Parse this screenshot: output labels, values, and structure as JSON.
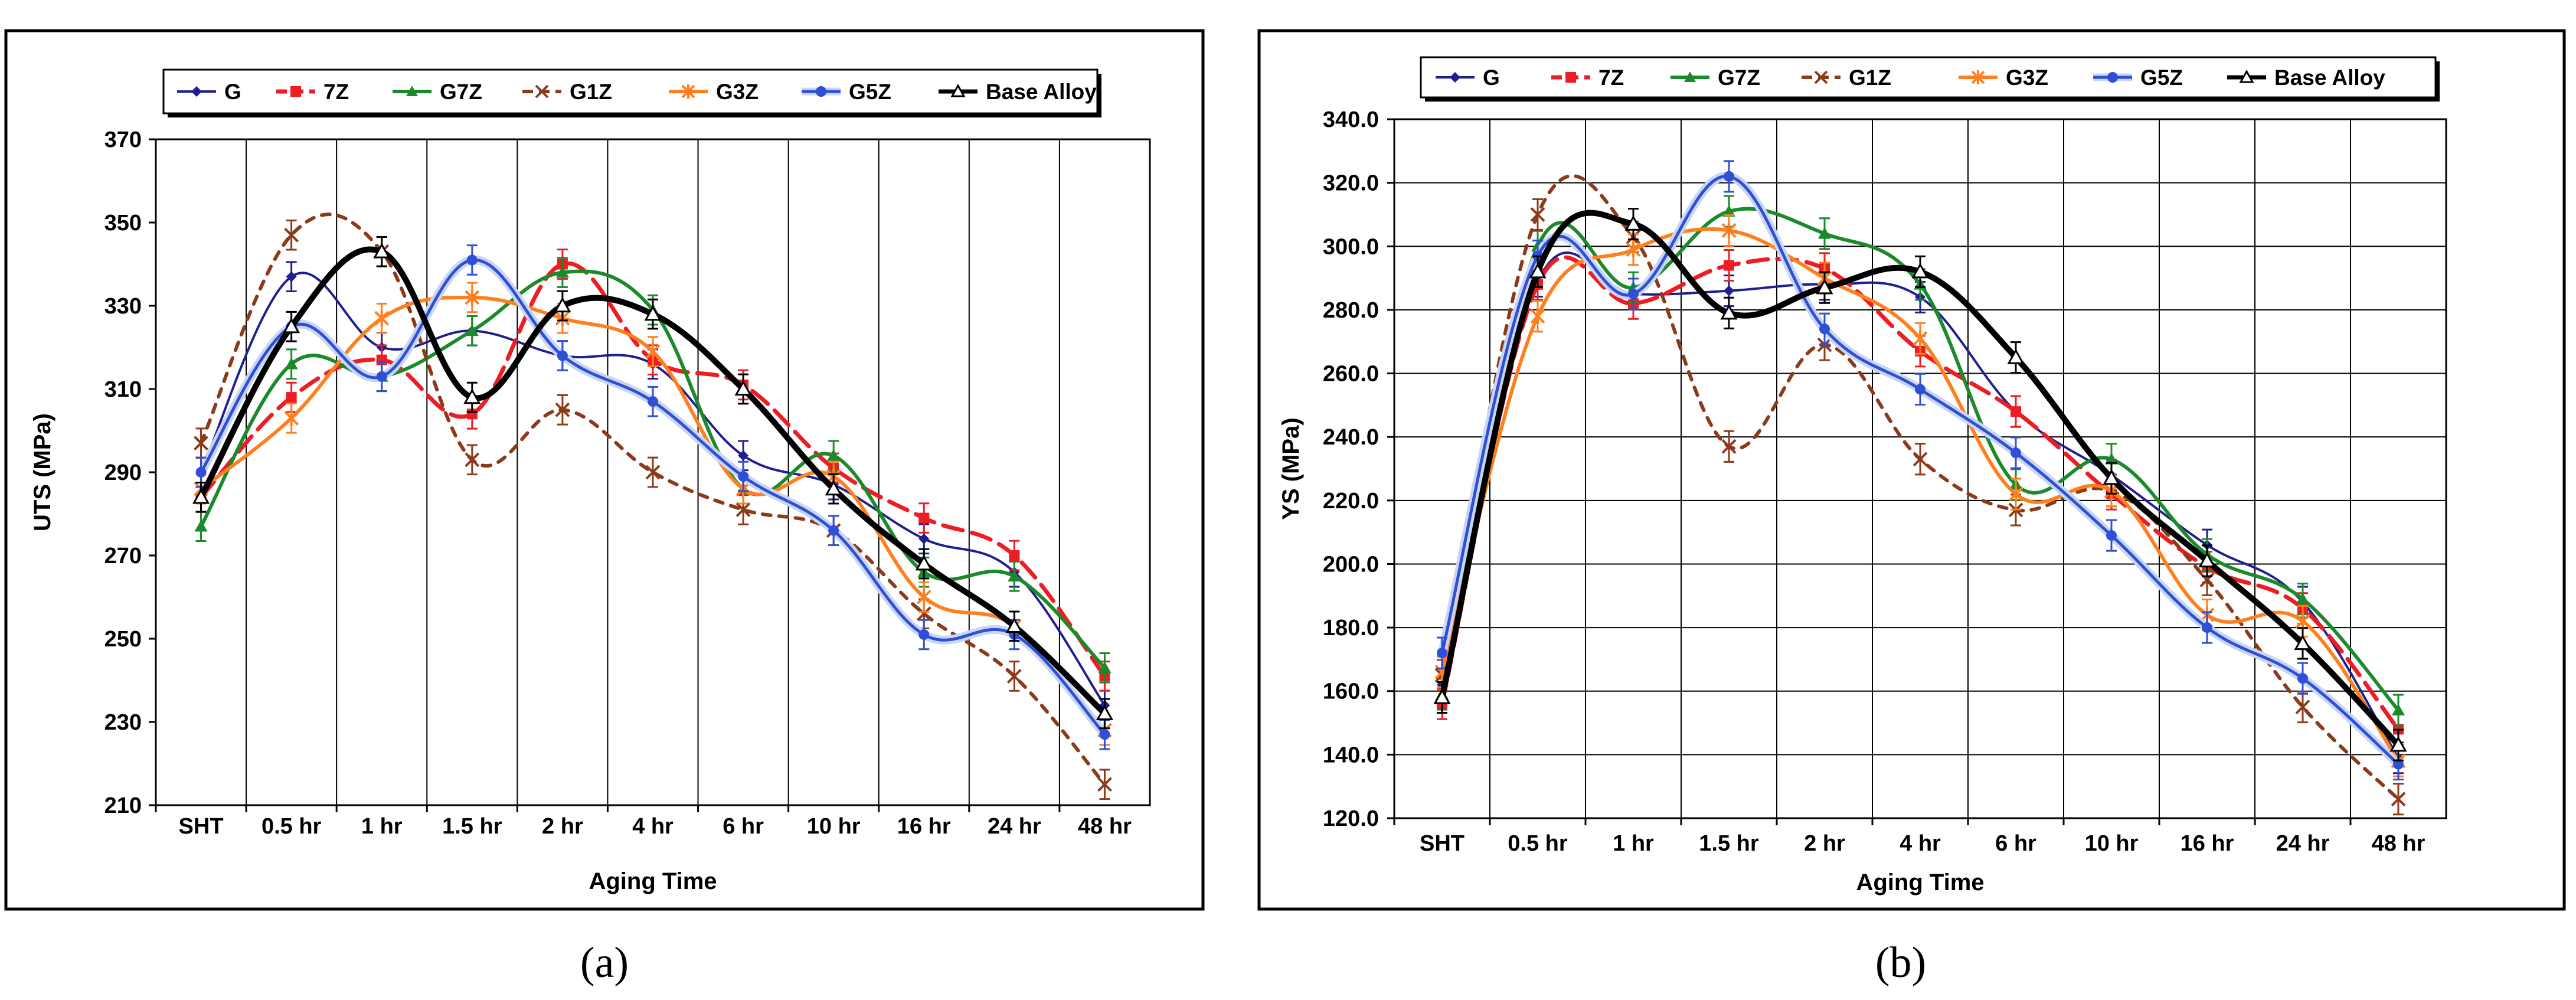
{
  "figure": {
    "panel_labels": [
      "(a)",
      "(b)"
    ],
    "colors": {
      "G": "#1f1f8f",
      "7Z": "#ee1c24",
      "G7Z": "#1b8a2a",
      "G1Z": "#8b3a1a",
      "G3Z": "#ff7f1e",
      "G5Z": "#2e4fd6",
      "Base Alloy": "#000000",
      "G5Z_band": "#c9d6f2"
    }
  },
  "chart_data": [
    {
      "type": "line",
      "title": "",
      "xlabel": "Aging Time",
      "ylabel": "UTS (MPa)",
      "categories": [
        "SHT",
        "0.5 hr",
        "1 hr",
        "1.5 hr",
        "2 hr",
        "4 hr",
        "6 hr",
        "10 hr",
        "16 hr",
        "24 hr",
        "48 hr"
      ],
      "ylim": [
        210,
        370
      ],
      "yticks": [
        "210",
        "230",
        "250",
        "270",
        "290",
        "310",
        "330",
        "350",
        "370"
      ],
      "grid": "vertical",
      "legend": "top",
      "legend_labels": [
        "G",
        "7Z",
        "G7Z",
        "G1Z",
        "G3Z",
        "G5Z",
        "Base Alloy"
      ],
      "series": [
        {
          "name": "G",
          "values": [
            290,
            337,
            320,
            324,
            318,
            316,
            294,
            287,
            274,
            266,
            234
          ]
        },
        {
          "name": "7Z",
          "values": [
            284,
            308,
            317,
            304,
            340,
            317,
            311,
            291,
            279,
            270,
            241
          ]
        },
        {
          "name": "G7Z",
          "values": [
            277,
            316,
            313,
            324,
            338,
            329,
            286,
            294,
            266,
            265,
            243
          ]
        },
        {
          "name": "G1Z",
          "values": [
            297,
            347,
            343,
            293,
            305,
            290,
            281,
            276,
            256,
            241,
            215
          ]
        },
        {
          "name": "G3Z",
          "values": [
            286,
            303,
            327,
            332,
            327,
            319,
            286,
            289,
            260,
            253,
            228
          ]
        },
        {
          "name": "G5Z",
          "values": [
            290,
            325,
            313,
            341,
            318,
            307,
            289,
            276,
            251,
            251,
            227
          ]
        },
        {
          "name": "Base Alloy",
          "values": [
            284,
            325,
            343,
            308,
            330,
            328,
            310,
            286,
            268,
            253,
            232
          ]
        }
      ]
    },
    {
      "type": "line",
      "title": "",
      "xlabel": "Aging Time",
      "ylabel": "YS (MPa)",
      "categories": [
        "SHT",
        "0.5 hr",
        "1 hr",
        "1.5 hr",
        "2 hr",
        "4 hr",
        "6 hr",
        "10 hr",
        "16 hr",
        "24 hr",
        "48 hr"
      ],
      "ylim": [
        120,
        340
      ],
      "yticks": [
        "120.0",
        "140.0",
        "160.0",
        "180.0",
        "200.0",
        "220.0",
        "240.0",
        "260.0",
        "280.0",
        "300.0",
        "320.0",
        "340.0"
      ],
      "grid": "both",
      "legend": "top",
      "legend_labels": [
        "G",
        "7Z",
        "G7Z",
        "G1Z",
        "G3Z",
        "G5Z",
        "Base Alloy"
      ],
      "series": [
        {
          "name": "G",
          "values": [
            162,
            289,
            285,
            286,
            288,
            284,
            248,
            228,
            206,
            188,
            139
          ]
        },
        {
          "name": "7Z",
          "values": [
            156,
            288,
            282,
            294,
            293,
            267,
            248,
            222,
            199,
            186,
            148
          ]
        },
        {
          "name": "G7Z",
          "values": [
            159,
            300,
            287,
            311,
            304,
            288,
            225,
            233,
            203,
            189,
            154
          ]
        },
        {
          "name": "G1Z",
          "values": [
            165,
            310,
            303,
            237,
            269,
            233,
            217,
            223,
            195,
            155,
            126
          ]
        },
        {
          "name": "G3Z",
          "values": [
            166,
            278,
            299,
            305,
            290,
            271,
            222,
            223,
            184,
            182,
            138
          ]
        },
        {
          "name": "G5Z",
          "values": [
            172,
            297,
            285,
            322,
            274,
            255,
            235,
            209,
            180,
            164,
            137
          ]
        },
        {
          "name": "Base Alloy",
          "values": [
            158,
            292,
            307,
            279,
            287,
            292,
            265,
            227,
            201,
            175,
            143
          ]
        }
      ]
    }
  ]
}
